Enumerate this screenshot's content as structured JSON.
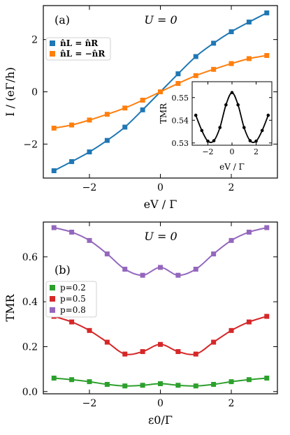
{
  "chart_data": [
    {
      "type": "line",
      "panel_label": "(a)",
      "annotation": "U = 0",
      "xlabel": "eV / Γ",
      "ylabel": "I / (eΓ/h)",
      "xlim": [
        -3.3,
        3.3
      ],
      "ylim": [
        -3.3,
        3.3
      ],
      "xticks": [
        -2,
        0,
        2
      ],
      "yticks": [
        -2,
        0,
        2
      ],
      "xtick_labels": [
        "−2",
        "0",
        "2"
      ],
      "ytick_labels": [
        "−2",
        "0",
        "2"
      ],
      "legend_position": "upper-left",
      "series": [
        {
          "name": "n̂L = n̂R",
          "color": "#1f77b4",
          "marker": "square",
          "x": [
            -3,
            -2.5,
            -2,
            -1.5,
            -1,
            -0.5,
            0,
            0.5,
            1,
            1.5,
            2,
            2.5,
            3
          ],
          "y": [
            -3.02,
            -2.67,
            -2.3,
            -1.86,
            -1.35,
            -0.69,
            0.0,
            0.69,
            1.35,
            1.86,
            2.3,
            2.67,
            3.02
          ]
        },
        {
          "name": "n̂L = −n̂R",
          "color": "#ff7f0e",
          "marker": "square",
          "x": [
            -3,
            -2.5,
            -2,
            -1.5,
            -1,
            -0.5,
            0,
            0.5,
            1,
            1.5,
            2,
            2.5,
            3
          ],
          "y": [
            -1.39,
            -1.27,
            -1.08,
            -0.86,
            -0.62,
            -0.32,
            0.0,
            0.32,
            0.62,
            0.86,
            1.08,
            1.27,
            1.39
          ]
        }
      ],
      "inset": {
        "type": "line",
        "xlabel": "eV / Γ",
        "ylabel": "TMR",
        "xlim": [
          -3.3,
          3.3
        ],
        "ylim": [
          0.529,
          0.557
        ],
        "xticks": [
          -2,
          0,
          2
        ],
        "yticks": [
          0.53,
          0.54,
          0.55
        ],
        "xtick_labels": [
          "−2",
          "0",
          "2"
        ],
        "ytick_labels": [
          "0.53",
          "0.54",
          "0.55"
        ],
        "series": [
          {
            "color": "#000000",
            "marker": "circle",
            "x": [
              -3,
              -2.5,
              -2,
              -1.5,
              -1,
              -0.5,
              0,
              0.5,
              1,
              1.5,
              2,
              2.5,
              3
            ],
            "y": [
              0.5422,
              0.5355,
              0.5308,
              0.531,
              0.5368,
              0.5468,
              0.5522,
              0.5468,
              0.5368,
              0.531,
              0.5308,
              0.5355,
              0.5422
            ]
          }
        ]
      }
    },
    {
      "type": "line",
      "panel_label": "(b)",
      "annotation": "U = 0",
      "xlabel": "ε0/Γ",
      "ylabel": "TMR",
      "xlim": [
        -3.3,
        3.3
      ],
      "ylim": [
        -0.01,
        0.755
      ],
      "xticks": [
        -2,
        0,
        2
      ],
      "yticks": [
        0.0,
        0.2,
        0.4,
        0.6
      ],
      "xtick_labels": [
        "−2",
        "0",
        "2"
      ],
      "ytick_labels": [
        "0.0",
        "0.2",
        "0.4",
        "0.6"
      ],
      "legend_position": "middle-left",
      "series": [
        {
          "name": "p=0.2",
          "color": "#2ca02c",
          "marker": "square",
          "x": [
            -3,
            -2.5,
            -2,
            -1.5,
            -1,
            -0.5,
            0,
            0.5,
            1,
            1.5,
            2,
            2.5,
            3
          ],
          "y": [
            0.06,
            0.053,
            0.044,
            0.032,
            0.025,
            0.028,
            0.035,
            0.028,
            0.025,
            0.032,
            0.044,
            0.053,
            0.06
          ]
        },
        {
          "name": "p=0.5",
          "color": "#d62728",
          "marker": "square",
          "x": [
            -3,
            -2.5,
            -2,
            -1.5,
            -1,
            -0.5,
            0,
            0.5,
            1,
            1.5,
            2,
            2.5,
            3
          ],
          "y": [
            0.335,
            0.31,
            0.272,
            0.22,
            0.167,
            0.178,
            0.21,
            0.178,
            0.167,
            0.22,
            0.272,
            0.31,
            0.335
          ]
        },
        {
          "name": "p=0.8",
          "color": "#9467bd",
          "marker": "square",
          "x": [
            -3,
            -2.5,
            -2,
            -1.5,
            -1,
            -0.5,
            0,
            0.5,
            1,
            1.5,
            2,
            2.5,
            3
          ],
          "y": [
            0.73,
            0.71,
            0.673,
            0.613,
            0.545,
            0.518,
            0.553,
            0.518,
            0.545,
            0.613,
            0.673,
            0.71,
            0.73
          ]
        }
      ]
    }
  ]
}
